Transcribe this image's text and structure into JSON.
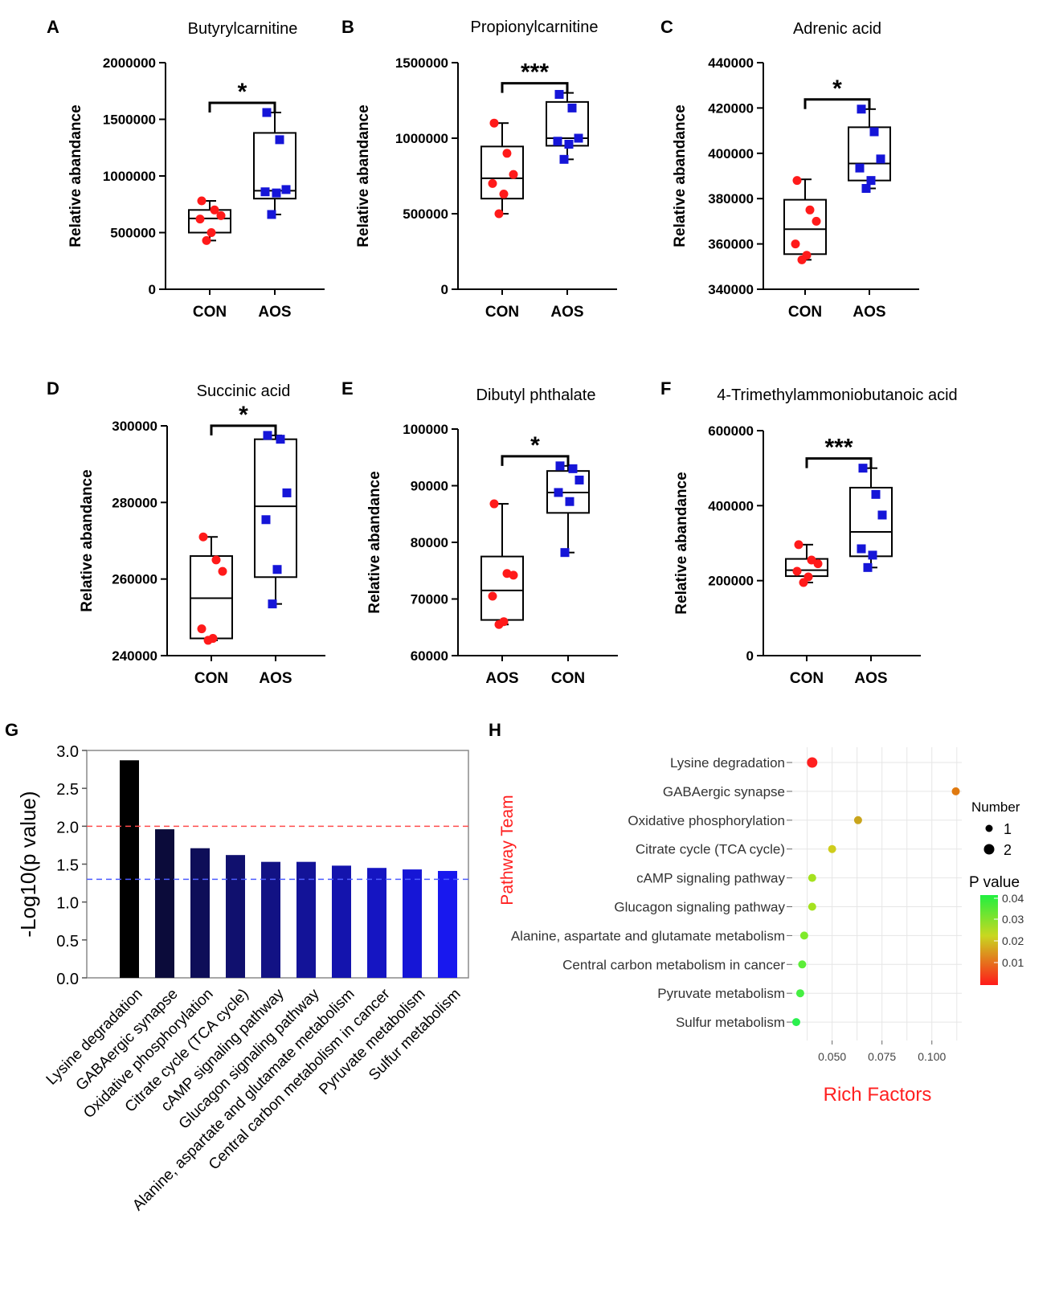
{
  "colors": {
    "con_marker": "#ff1a1a",
    "aos_marker": "#1515d8",
    "axis": "#000000",
    "red_threshold": "#ff4d4d",
    "blue_threshold": "#4d5cff",
    "pathway_label": "#ff2020",
    "rich_label": "#ff2020",
    "grid": "#e6e6e6"
  },
  "common": {
    "ylabel": "Relative abandance",
    "group_con": "CON",
    "group_aos": "AOS"
  },
  "chart_data": [
    {
      "panel": "A",
      "type": "box",
      "title": "Butyrylcarnitine",
      "ylabel": "Relative abandance",
      "ylim": [
        0,
        2000000
      ],
      "yticks": [
        "0",
        "500000",
        "1000000",
        "1500000",
        "2000000"
      ],
      "significance": "*",
      "groups": [
        {
          "name": "CON",
          "color": "#ff1a1a",
          "marker": "circle",
          "min": 430000,
          "q1": 500000,
          "median": 625000,
          "q3": 700000,
          "max": 780000,
          "points": [
            780000,
            700000,
            650000,
            620000,
            500000,
            430000
          ]
        },
        {
          "name": "AOS",
          "color": "#1515d8",
          "marker": "square",
          "min": 660000,
          "q1": 800000,
          "median": 870000,
          "q3": 1380000,
          "max": 1560000,
          "points": [
            1560000,
            1320000,
            880000,
            860000,
            850000,
            660000
          ]
        }
      ]
    },
    {
      "panel": "B",
      "type": "box",
      "title": "Propionylcarnitine",
      "ylabel": "Relative abandance",
      "ylim": [
        0,
        1500000
      ],
      "yticks": [
        "0",
        "500000",
        "1000000",
        "1500000"
      ],
      "significance": "***",
      "groups": [
        {
          "name": "CON",
          "color": "#ff1a1a",
          "marker": "circle",
          "min": 500000,
          "q1": 600000,
          "median": 735000,
          "q3": 945000,
          "max": 1100000,
          "points": [
            1100000,
            900000,
            760000,
            700000,
            630000,
            500000
          ]
        },
        {
          "name": "AOS",
          "color": "#1515d8",
          "marker": "square",
          "min": 860000,
          "q1": 950000,
          "median": 1000000,
          "q3": 1240000,
          "max": 1300000,
          "points": [
            1290000,
            1200000,
            1000000,
            980000,
            960000,
            860000
          ]
        }
      ]
    },
    {
      "panel": "C",
      "type": "box",
      "title": "Adrenic acid",
      "ylabel": "Relative abandance",
      "ylim": [
        340000,
        440000
      ],
      "yticks": [
        "340000",
        "360000",
        "380000",
        "400000",
        "420000",
        "440000"
      ],
      "significance": "*",
      "groups": [
        {
          "name": "CON",
          "color": "#ff1a1a",
          "marker": "circle",
          "min": 353000,
          "q1": 355500,
          "median": 366500,
          "q3": 379500,
          "max": 388500,
          "points": [
            388000,
            375000,
            370000,
            360000,
            355000,
            353000
          ]
        },
        {
          "name": "AOS",
          "color": "#1515d8",
          "marker": "square",
          "min": 384500,
          "q1": 388000,
          "median": 395500,
          "q3": 411500,
          "max": 419500,
          "points": [
            419500,
            409500,
            397500,
            393500,
            388000,
            384500
          ]
        }
      ]
    },
    {
      "panel": "D",
      "type": "box",
      "title": "Succinic acid",
      "ylabel": "Relative abandance",
      "ylim": [
        240000,
        300000
      ],
      "yticks": [
        "240000",
        "260000",
        "280000",
        "300000"
      ],
      "significance": "*",
      "groups": [
        {
          "name": "CON",
          "color": "#ff1a1a",
          "marker": "circle",
          "min": 244000,
          "q1": 244500,
          "median": 255000,
          "q3": 266000,
          "max": 271000,
          "points": [
            271000,
            265000,
            262000,
            247000,
            244500,
            244000
          ]
        },
        {
          "name": "AOS",
          "color": "#1515d8",
          "marker": "square",
          "min": 253500,
          "q1": 260500,
          "median": 279000,
          "q3": 296500,
          "max": 297500,
          "points": [
            297500,
            296500,
            282500,
            275500,
            262500,
            253500
          ]
        }
      ]
    },
    {
      "panel": "E",
      "type": "box",
      "title": "Dibutyl phthalate",
      "ylabel": "Relative abandance",
      "ylim": [
        60000,
        100000
      ],
      "yticks": [
        "60000",
        "70000",
        "80000",
        "90000",
        "100000"
      ],
      "significance": "*",
      "groups": [
        {
          "name": "AOS",
          "color": "#ff1a1a",
          "marker": "circle",
          "min": 65500,
          "q1": 66300,
          "median": 71500,
          "q3": 77500,
          "max": 86800,
          "points": [
            86800,
            74500,
            74200,
            70500,
            66000,
            65500
          ]
        },
        {
          "name": "CON",
          "color": "#1515d8",
          "marker": "square",
          "min": 78200,
          "q1": 85200,
          "median": 88800,
          "q3": 92600,
          "max": 93500,
          "points": [
            93500,
            93000,
            91000,
            88800,
            87200,
            78200
          ]
        }
      ]
    },
    {
      "panel": "F",
      "type": "box",
      "title": "4-Trimethylammoniobutanoic acid",
      "ylabel": "Relative abandance",
      "ylim": [
        0,
        600000
      ],
      "yticks": [
        "0",
        "200000",
        "400000",
        "600000"
      ],
      "significance": "***",
      "groups": [
        {
          "name": "CON",
          "color": "#ff1a1a",
          "marker": "circle",
          "min": 195000,
          "q1": 212000,
          "median": 228000,
          "q3": 258000,
          "max": 296000,
          "points": [
            296000,
            255000,
            245000,
            225000,
            210000,
            195000
          ]
        },
        {
          "name": "AOS",
          "color": "#1515d8",
          "marker": "square",
          "min": 235000,
          "q1": 265000,
          "median": 330000,
          "q3": 448000,
          "max": 500000,
          "points": [
            500000,
            430000,
            375000,
            285000,
            268000,
            235000
          ]
        }
      ]
    },
    {
      "panel": "G",
      "type": "bar",
      "ylabel": "-Log10(p value)",
      "ylim": [
        0,
        3.0
      ],
      "yticks": [
        "0.0",
        "0.5",
        "1.0",
        "1.5",
        "2.0",
        "2.5",
        "3.0"
      ],
      "threshold_lines": [
        2.0,
        1.3
      ],
      "categories": [
        "Lysine degradation",
        "GABAergic synapse",
        "Oxidative phosphorylation",
        "Citrate cycle (TCA cycle)",
        "cAMP signaling pathway",
        "Glucagon signaling pathway",
        "Alanine, aspartate and glutamate metabolism",
        "Central carbon metabolism in cancer",
        "Pyruvate metabolism",
        "Sulfur metabolism"
      ],
      "values": [
        2.87,
        1.96,
        1.71,
        1.62,
        1.53,
        1.53,
        1.48,
        1.45,
        1.43,
        1.41
      ],
      "bar_colors": [
        "#000000",
        "#0b0b3a",
        "#0e0e58",
        "#10106e",
        "#121284",
        "#131398",
        "#1414ad",
        "#1515c2",
        "#1616d6",
        "#1818ee"
      ]
    },
    {
      "panel": "H",
      "type": "scatter",
      "xlabel": "Rich Factors",
      "ylabel": "Pathway Team",
      "xlim": [
        0.03,
        0.115
      ],
      "xticks": [
        "0.050",
        "0.075",
        "0.100"
      ],
      "categories": [
        "Lysine degradation",
        "GABAergic synapse",
        "Oxidative phosphorylation",
        "Citrate cycle (TCA cycle)",
        "cAMP signaling pathway",
        "Glucagon signaling pathway",
        "Alanine, aspartate and glutamate metabolism",
        "Central carbon metabolism in cancer",
        "Pyruvate metabolism",
        "Sulfur metabolism"
      ],
      "x": [
        0.04,
        0.112,
        0.063,
        0.05,
        0.04,
        0.04,
        0.036,
        0.035,
        0.034,
        0.032
      ],
      "number": [
        2,
        1,
        1,
        1,
        1,
        1,
        1,
        1,
        1,
        1
      ],
      "colors": [
        "#ff2020",
        "#e07a10",
        "#c9a51c",
        "#cfcd1c",
        "#a5e21f",
        "#a5e21f",
        "#7fea2a",
        "#5ced38",
        "#45ef42",
        "#2bf04e"
      ],
      "legend_number_title": "Number",
      "legend_number_values": [
        "1",
        "2"
      ],
      "legend_p_title": "P value",
      "legend_p_ticks": [
        "0.04",
        "0.03",
        "0.02",
        "0.01"
      ]
    }
  ]
}
